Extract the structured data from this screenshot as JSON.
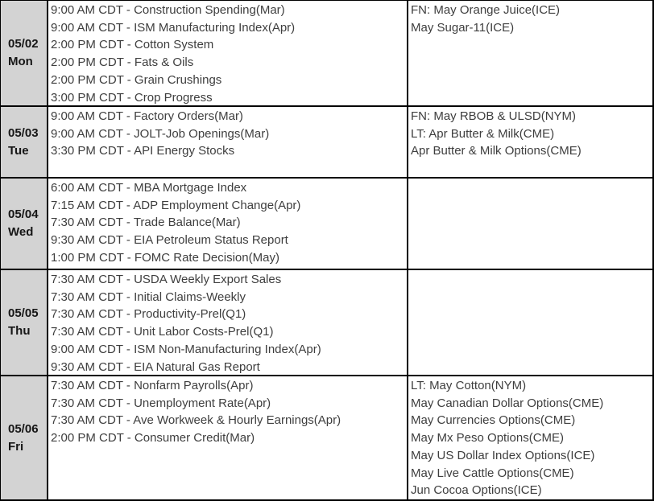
{
  "calendar": {
    "timezone_note": "CDT",
    "colors": {
      "date_column_bg": "#d3d3d3",
      "border": "#000000",
      "event_text": "#3e3e3e",
      "date_text": "#161616"
    },
    "rows": [
      {
        "date": "05/02",
        "day": "Mon",
        "events": [
          "9:00 AM CDT - Construction Spending(Mar)",
          "9:00 AM CDT - ISM Manufacturing Index(Apr)",
          "2:00 PM CDT - Cotton System",
          "2:00 PM CDT - Fats & Oils",
          "2:00 PM CDT - Grain Crushings",
          "3:00 PM CDT - Crop Progress"
        ],
        "notices": [
          "FN: May Orange Juice(ICE)",
          "May Sugar-11(ICE)"
        ]
      },
      {
        "date": "05/03",
        "day": "Tue",
        "events": [
          "9:00 AM CDT - Factory Orders(Mar)",
          "9:00 AM CDT - JOLT-Job Openings(Mar)",
          "3:30 PM CDT - API Energy Stocks"
        ],
        "notices": [
          "FN: May RBOB & ULSD(NYM)",
          "LT: Apr Butter & Milk(CME)",
          "Apr Butter & Milk Options(CME)"
        ]
      },
      {
        "date": "05/04",
        "day": "Wed",
        "events": [
          "6:00 AM CDT - MBA Mortgage Index",
          "7:15 AM CDT - ADP Employment Change(Apr)",
          "7:30 AM CDT - Trade Balance(Mar)",
          "9:30 AM CDT - EIA Petroleum Status Report",
          "1:00 PM CDT - FOMC Rate Decision(May)"
        ],
        "notices": []
      },
      {
        "date": "05/05",
        "day": "Thu",
        "events": [
          "7:30 AM CDT - USDA Weekly Export Sales",
          "7:30 AM CDT - Initial Claims-Weekly",
          "7:30 AM CDT - Productivity-Prel(Q1)",
          "7:30 AM CDT - Unit Labor Costs-Prel(Q1)",
          "9:00 AM CDT - ISM Non-Manufacturing Index(Apr)",
          "9:30 AM CDT - EIA Natural Gas Report"
        ],
        "notices": []
      },
      {
        "date": "05/06",
        "day": "Fri",
        "events": [
          "7:30 AM CDT - Nonfarm Payrolls(Apr)",
          "7:30 AM CDT - Unemployment Rate(Apr)",
          "7:30 AM CDT - Ave Workweek & Hourly Earnings(Apr)",
          "2:00 PM CDT - Consumer Credit(Mar)"
        ],
        "notices": [
          "LT: May Cotton(NYM)",
          "May Canadian Dollar Options(CME)",
          "May Currencies Options(CME)",
          "May Mx Peso Options(CME)",
          "May US Dollar Index Options(ICE)",
          "May Live Cattle Options(CME)",
          "Jun Cocoa Options(ICE)"
        ]
      }
    ]
  }
}
